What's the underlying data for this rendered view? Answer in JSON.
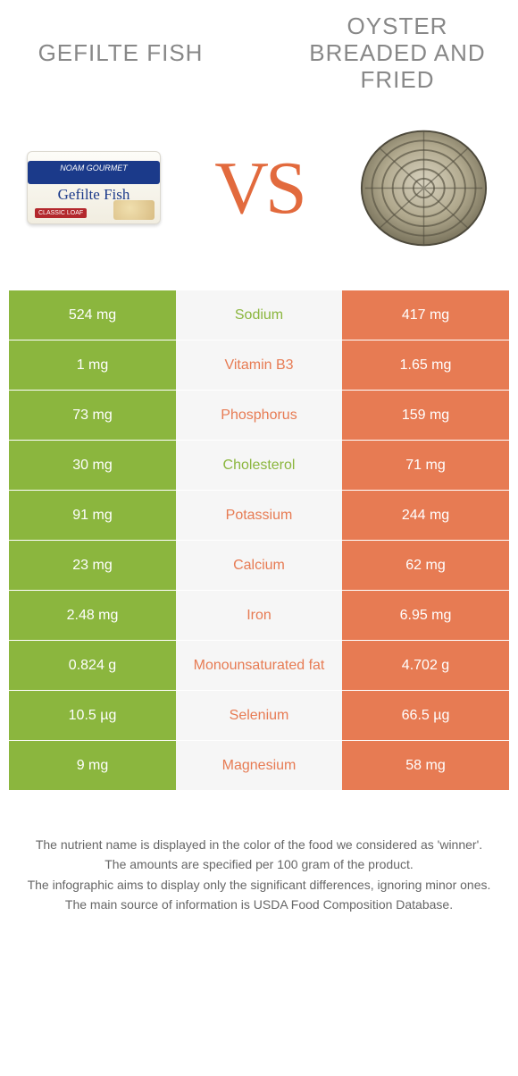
{
  "header": {
    "left_title": "Gefilte fish",
    "right_title": "Oyster breaded and fried",
    "vs_text": "VS"
  },
  "colors": {
    "left": "#8bb63e",
    "right": "#e77b53",
    "mid_bg": "#f6f6f6",
    "vs": "#e26a3d"
  },
  "nutrients": [
    {
      "name": "Sodium",
      "left": "524 mg",
      "right": "417 mg",
      "winner": "left"
    },
    {
      "name": "Vitamin B3",
      "left": "1 mg",
      "right": "1.65 mg",
      "winner": "right"
    },
    {
      "name": "Phosphorus",
      "left": "73 mg",
      "right": "159 mg",
      "winner": "right"
    },
    {
      "name": "Cholesterol",
      "left": "30 mg",
      "right": "71 mg",
      "winner": "left"
    },
    {
      "name": "Potassium",
      "left": "91 mg",
      "right": "244 mg",
      "winner": "right"
    },
    {
      "name": "Calcium",
      "left": "23 mg",
      "right": "62 mg",
      "winner": "right"
    },
    {
      "name": "Iron",
      "left": "2.48 mg",
      "right": "6.95 mg",
      "winner": "right"
    },
    {
      "name": "Monounsaturated fat",
      "left": "0.824 g",
      "right": "4.702 g",
      "winner": "right"
    },
    {
      "name": "Selenium",
      "left": "10.5 µg",
      "right": "66.5 µg",
      "winner": "right"
    },
    {
      "name": "Magnesium",
      "left": "9 mg",
      "right": "58 mg",
      "winner": "right"
    }
  ],
  "footnotes": [
    "The nutrient name is displayed in the color of the food we considered as 'winner'.",
    "The amounts are specified per 100 gram of the product.",
    "The infographic aims to display only the significant differences, ignoring minor ones.",
    "The main source of information is USDA Food Composition Database."
  ]
}
